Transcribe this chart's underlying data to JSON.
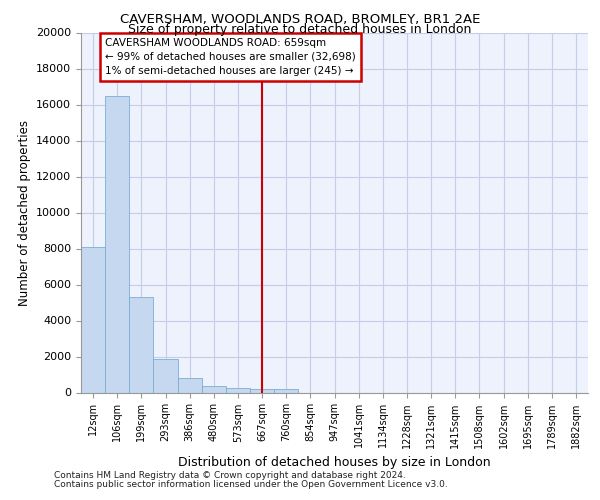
{
  "title1": "CAVERSHAM, WOODLANDS ROAD, BROMLEY, BR1 2AE",
  "title2": "Size of property relative to detached houses in London",
  "xlabel": "Distribution of detached houses by size in London",
  "ylabel": "Number of detached properties",
  "categories": [
    "12sqm",
    "106sqm",
    "199sqm",
    "293sqm",
    "386sqm",
    "480sqm",
    "573sqm",
    "667sqm",
    "760sqm",
    "854sqm",
    "947sqm",
    "1041sqm",
    "1134sqm",
    "1228sqm",
    "1321sqm",
    "1415sqm",
    "1508sqm",
    "1602sqm",
    "1695sqm",
    "1789sqm",
    "1882sqm"
  ],
  "values": [
    8100,
    16500,
    5300,
    1850,
    780,
    350,
    245,
    200,
    200,
    0,
    0,
    0,
    0,
    0,
    0,
    0,
    0,
    0,
    0,
    0,
    0
  ],
  "bar_color": "#c5d8f0",
  "bar_edge_color": "#7aafd4",
  "vline_x_idx": 7,
  "vline_color": "#cc0000",
  "annotation_title": "CAVERSHAM WOODLANDS ROAD: 659sqm",
  "annotation_line1": "← 99% of detached houses are smaller (32,698)",
  "annotation_line2": "1% of semi-detached houses are larger (245) →",
  "annotation_box_color": "#cc0000",
  "ylim": [
    0,
    20000
  ],
  "yticks": [
    0,
    2000,
    4000,
    6000,
    8000,
    10000,
    12000,
    14000,
    16000,
    18000,
    20000
  ],
  "footnote1": "Contains HM Land Registry data © Crown copyright and database right 2024.",
  "footnote2": "Contains public sector information licensed under the Open Government Licence v3.0.",
  "bg_color": "#eef2fc",
  "grid_color": "#c5cde8",
  "fig_bg": "#ffffff"
}
